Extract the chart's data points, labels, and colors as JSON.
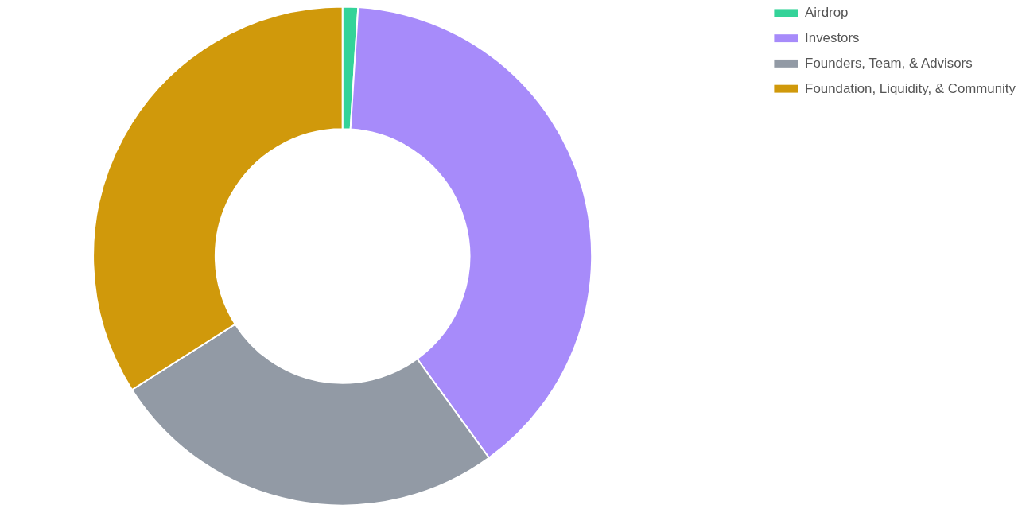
{
  "chart_data": {
    "type": "donut",
    "categories": [
      "Airdrop",
      "Investors",
      "Founders, Team, & Advisors",
      "Foundation, Liquidity, & Community"
    ],
    "values": [
      1,
      39,
      26,
      34
    ],
    "colors": [
      "#34d399",
      "#a78bfa",
      "#929aa5",
      "#d0990b"
    ],
    "legend": "right"
  }
}
